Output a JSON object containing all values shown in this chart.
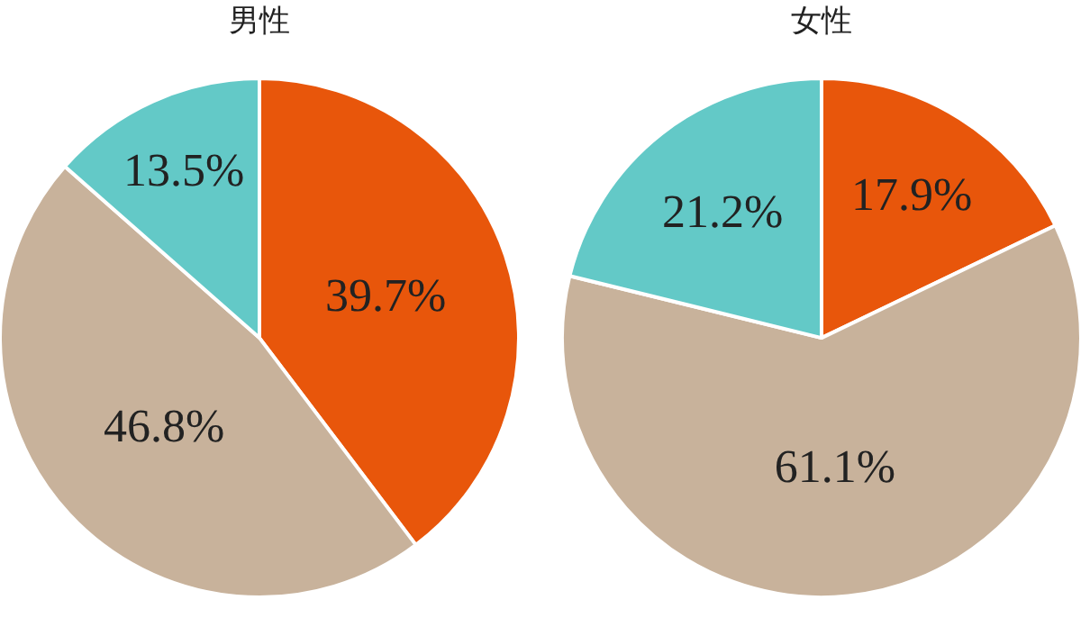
{
  "chart_data": [
    {
      "type": "pie",
      "title": "男性",
      "categories": [
        null,
        null,
        null
      ],
      "values": [
        39.7,
        46.8,
        13.5
      ],
      "colors": [
        "#e8560b",
        "#c8b29b",
        "#63c9c7"
      ],
      "value_labels": [
        "39.7%",
        "46.8%",
        "13.5%"
      ],
      "legend": false
    },
    {
      "type": "pie",
      "title": "女性",
      "categories": [
        null,
        null,
        null
      ],
      "values": [
        17.9,
        61.1,
        21.2
      ],
      "colors": [
        "#e8560b",
        "#c8b29b",
        "#63c9c7"
      ],
      "value_labels": [
        "17.9%",
        "61.1%",
        "21.2%"
      ],
      "legend": false
    }
  ]
}
